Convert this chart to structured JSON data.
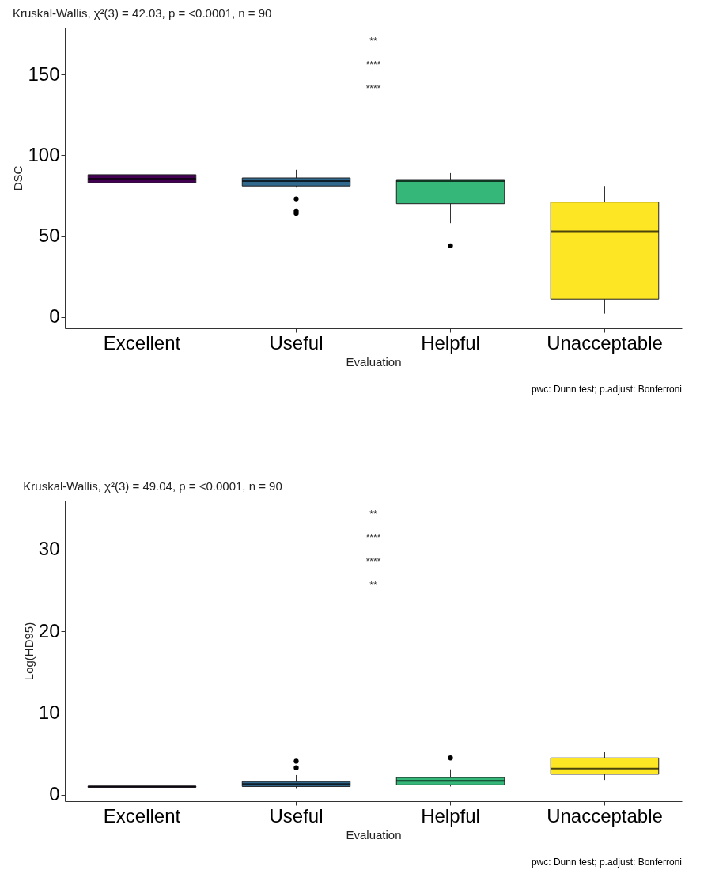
{
  "chart_data": [
    {
      "type": "box",
      "title": "Kruskal-Wallis, χ²(3) = 42.03, p = <0.0001, n = 90",
      "xlabel": "Evaluation",
      "ylabel": "DSC",
      "categories": [
        "Excellent",
        "Useful",
        "Helpful",
        "Unacceptable"
      ],
      "colors": [
        "#440154",
        "#31688e",
        "#35b779",
        "#fde725"
      ],
      "boxes": [
        {
          "low": 77,
          "q1": 83,
          "median": 85.5,
          "q3": 88,
          "high": 92
        },
        {
          "low": 80,
          "q1": 81,
          "median": 84,
          "q3": 86,
          "high": 91,
          "outliers": [
            73,
            65.5,
            64
          ]
        },
        {
          "low": 58,
          "q1": 70,
          "median": 84,
          "q3": 85,
          "high": 89,
          "outliers": [
            44
          ]
        },
        {
          "low": 2,
          "q1": 11,
          "median": 53,
          "q3": 71,
          "high": 81
        }
      ],
      "ylim": [
        -7,
        179
      ],
      "yticks": [
        0,
        50,
        100,
        150
      ],
      "grid": false,
      "annotations": [
        "**",
        "****",
        "****",
        "pwc: Dunn test; p.adjust: Bonferroni"
      ]
    },
    {
      "type": "box",
      "title": "Kruskal-Wallis, χ²(3) = 49.04, p = <0.0001, n = 90",
      "xlabel": "Evaluation",
      "ylabel": "Log(HD95)",
      "categories": [
        "Excellent",
        "Useful",
        "Helpful",
        "Unacceptable"
      ],
      "colors": [
        "#440154",
        "#31688e",
        "#35b779",
        "#fde725"
      ],
      "boxes": [
        {
          "low": 0.8,
          "q1": 0.9,
          "median": 1.0,
          "q3": 1.05,
          "high": 1.3
        },
        {
          "low": 0.8,
          "q1": 1.0,
          "median": 1.3,
          "q3": 1.6,
          "high": 2.4,
          "outliers": [
            4.1,
            3.3
          ]
        },
        {
          "low": 1.0,
          "q1": 1.2,
          "median": 1.7,
          "q3": 2.1,
          "high": 3.1,
          "outliers": [
            4.5
          ]
        },
        {
          "low": 1.8,
          "q1": 2.5,
          "median": 3.2,
          "q3": 4.5,
          "high": 5.2
        }
      ],
      "ylim": [
        -0.8,
        36
      ],
      "yticks": [
        0,
        10,
        20,
        30
      ],
      "grid": false,
      "annotations": [
        "**",
        "****",
        "****",
        "**",
        "pwc: Dunn test; p.adjust: Bonferroni"
      ]
    }
  ]
}
